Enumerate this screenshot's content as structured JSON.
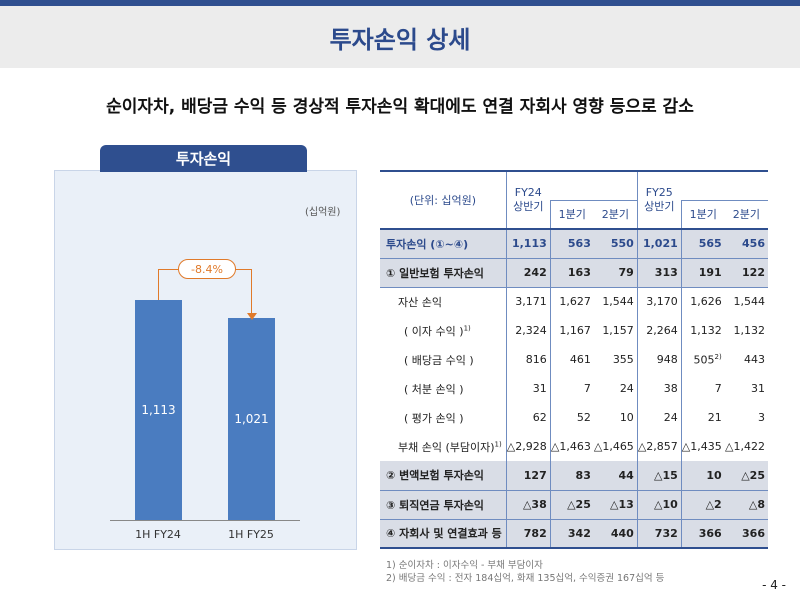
{
  "title": "투자손익 상세",
  "subtitle": "순이자차, 배당금 수익 등 경상적 투자손익 확대에도 연결 자회사 영향 등으로 감소",
  "chart": {
    "tab": "투자손익",
    "unit": "(십억원)",
    "change": "-8.4%",
    "chart_data": {
      "type": "bar",
      "categories": [
        "1H FY24",
        "1H FY25"
      ],
      "values": [
        1113,
        1021
      ],
      "labels": [
        "1,113",
        "1,021"
      ],
      "ylabel": "십억원",
      "annotation": "-8.4%"
    }
  },
  "table": {
    "unit": "(단위: 십억원)",
    "fy24": "FY24",
    "fy25": "FY25",
    "half": "상반기",
    "q1": "1분기",
    "q2": "2분기",
    "rows": [
      {
        "cls": "tot",
        "label": "투자손익 (①~④)",
        "v": [
          "1,113",
          "563",
          "550",
          "1,021",
          "565",
          "456"
        ]
      },
      {
        "cls": "sum",
        "label": "① 일반보험 투자손익",
        "v": [
          "242",
          "163",
          "79",
          "313",
          "191",
          "122"
        ]
      },
      {
        "cls": "sub",
        "label": "자산 손익",
        "v": [
          "3,171",
          "1,627",
          "1,544",
          "3,170",
          "1,626",
          "1,544"
        ]
      },
      {
        "cls": "sub2",
        "label": "( 이자 수익 )",
        "sup": "1)",
        "v": [
          "2,324",
          "1,167",
          "1,157",
          "2,264",
          "1,132",
          "1,132"
        ]
      },
      {
        "cls": "sub2",
        "label": "( 배당금 수익 )",
        "v": [
          "816",
          "461",
          "355",
          "948",
          "505",
          "443"
        ],
        "vsup": {
          "4": "2)"
        }
      },
      {
        "cls": "sub2",
        "label": "( 처분 손익 )",
        "v": [
          "31",
          "7",
          "24",
          "38",
          "7",
          "31"
        ]
      },
      {
        "cls": "sub2",
        "label": "( 평가 손익 )",
        "v": [
          "62",
          "52",
          "10",
          "24",
          "21",
          "3"
        ]
      },
      {
        "cls": "sub",
        "label": "부채 손익 (부담이자)",
        "sup": "1)",
        "v": [
          "△2,928",
          "△1,463",
          "△1,465",
          "△2,857",
          "△1,435",
          "△1,422"
        ]
      },
      {
        "cls": "sum",
        "label": "② 변액보험 투자손익",
        "v": [
          "127",
          "83",
          "44",
          "△15",
          "10",
          "△25"
        ]
      },
      {
        "cls": "sum",
        "label": "③ 퇴직연금 투자손익",
        "v": [
          "△38",
          "△25",
          "△13",
          "△10",
          "△2",
          "△8"
        ]
      },
      {
        "cls": "sum",
        "label": "④ 자회사 및 연결효과 등",
        "v": [
          "782",
          "342",
          "440",
          "732",
          "366",
          "366"
        ]
      }
    ]
  },
  "footnotes": [
    "1) 순이자차 : 이자수익 - 부채 부담이자",
    "2) 배당금 수익 : 전자 184십억, 화재 135십억, 수익증권 167십억 등"
  ],
  "page": "- 4 -"
}
